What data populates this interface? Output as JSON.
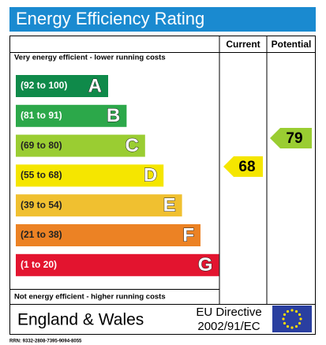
{
  "header": {
    "title": "Energy Efficiency Rating"
  },
  "columns": {
    "current": "Current",
    "potential": "Potential"
  },
  "top_note": "Very energy efficient - lower running costs",
  "bottom_note": "Not energy efficient - higher running costs",
  "bands": [
    {
      "range": "(92 to 100)",
      "letter": "A"
    },
    {
      "range": "(81 to 91)",
      "letter": "B"
    },
    {
      "range": "(69 to 80)",
      "letter": "C"
    },
    {
      "range": "(55 to 68)",
      "letter": "D"
    },
    {
      "range": "(39 to 54)",
      "letter": "E"
    },
    {
      "range": "(21 to 38)",
      "letter": "F"
    },
    {
      "range": "(1 to 20)",
      "letter": "G"
    }
  ],
  "current_rating": 68,
  "potential_rating": 79,
  "footer": {
    "region": "England & Wales",
    "directive_line1": "EU Directive",
    "directive_line2": "2002/91/EC"
  },
  "rrn": "RRN: 9332-2808-7395-9094-8055"
}
